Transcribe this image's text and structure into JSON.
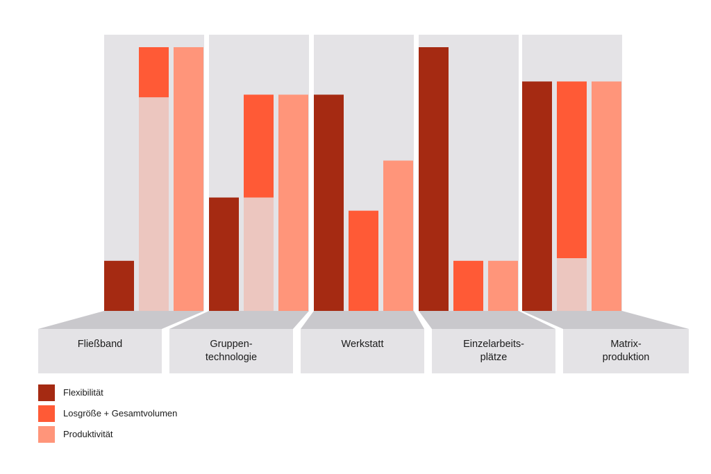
{
  "chart_data": {
    "type": "bar",
    "title": "",
    "xlabel": "",
    "ylabel": "",
    "ylim": [
      0,
      100
    ],
    "grid": false,
    "legend_position": "bottom-left",
    "categories": [
      [
        "Fließband"
      ],
      [
        "Gruppen-",
        "technologie"
      ],
      [
        "Werkstatt"
      ],
      [
        "Einzelarbeits-",
        "plätze"
      ],
      [
        "Matrix-",
        "produktion"
      ]
    ],
    "series": [
      {
        "name": "Flexibilität",
        "color": "#a52a12",
        "values": [
          19,
          43,
          82,
          100,
          87
        ]
      },
      {
        "name": "Losgröße + Gesamtvolumen",
        "color": "#ff5a36",
        "values": [
          100,
          82,
          38,
          19,
          87
        ]
      },
      {
        "name": "Produktivität",
        "color": "#ff957a",
        "values": [
          100,
          82,
          57,
          19,
          87
        ]
      }
    ],
    "ghost_values": [
      null,
      [
        81,
        43,
        null,
        null,
        20
      ],
      null
    ],
    "colors": {
      "panel": "#e4e3e6",
      "label_box": "#e4e3e6",
      "label_ramp": "#c9c8cc",
      "ghost_bar": "#ecc6bf"
    }
  }
}
